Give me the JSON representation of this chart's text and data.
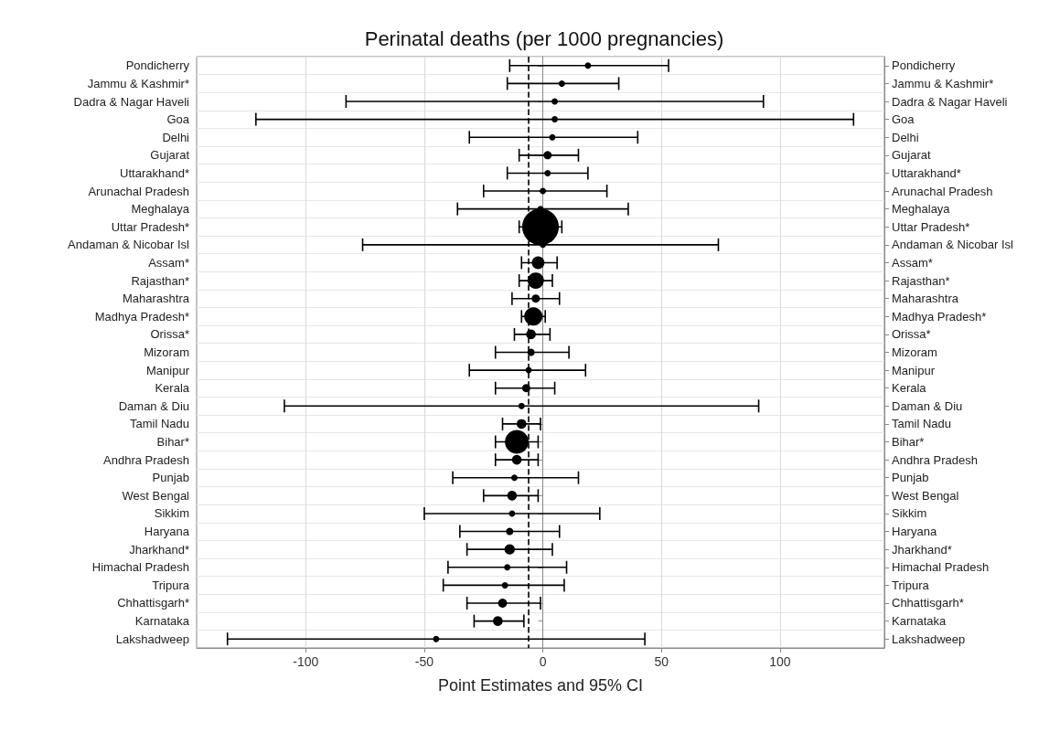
{
  "chart_data": {
    "type": "bubble",
    "orientation": "horizontal",
    "title": "Perinatal deaths (per 1000 pregnancies)",
    "xlabel": "Point Estimates and 95% CI",
    "categories": [
      "Pondicherry",
      "Jammu & Kashmir*",
      "Dadra & Nagar Haveli",
      "Goa",
      "Delhi",
      "Gujarat",
      "Uttarakhand*",
      "Arunachal Pradesh",
      "Meghalaya",
      "Uttar Pradesh*",
      "Andaman & Nicobar Isl",
      "Assam*",
      "Rajasthan*",
      "Maharashtra",
      "Madhya Pradesh*",
      "Orissa*",
      "Mizoram",
      "Manipur",
      "Kerala",
      "Daman & Diu",
      "Tamil Nadu",
      "Bihar*",
      "Andhra Pradesh",
      "Punjab",
      "West Bengal",
      "Sikkim",
      "Haryana",
      "Jharkhand*",
      "Himachal Pradesh",
      "Tripura",
      "Chhattisgarh*",
      "Karnataka",
      "Lakshadweep"
    ],
    "y2_categories": [
      "Pondicherry",
      "Jammu & Kashmir*",
      "Dadra & Nagar Haveli",
      "Goa",
      "Delhi",
      "Gujarat",
      "Uttarakhand*",
      "Arunachal Pradesh",
      "Meghalaya",
      "Uttar Pradesh*",
      "Andaman & Nicobar Isl",
      "Assam*",
      "Rajasthan*",
      "Maharashtra",
      "Madhya Pradesh*",
      "Orissa*",
      "Mizoram",
      "Manipur",
      "Kerala",
      "Daman & Diu",
      "Tamil Nadu",
      "Bihar*",
      "Andhra Pradesh",
      "Punjab",
      "West Bengal",
      "Sikkim",
      "Haryana",
      "Jharkhand*",
      "Himachal Pradesh",
      "Tripura",
      "Chhattisgarh*",
      "Karnataka",
      "Lakshadweep"
    ],
    "values": [
      19,
      8,
      5,
      5,
      4,
      2,
      2,
      0,
      -1,
      -1,
      0,
      -2,
      -3,
      -3,
      -4,
      -5,
      -5,
      -6,
      -7,
      -9,
      -9,
      -11,
      -11,
      -12,
      -13,
      -13,
      -14,
      -14,
      -15,
      -16,
      -17,
      -19,
      -45
    ],
    "errors": [
      [
        -14,
        53
      ],
      [
        -15,
        32
      ],
      [
        -83,
        93
      ],
      [
        -121,
        131
      ],
      [
        -31,
        40
      ],
      [
        -10,
        15
      ],
      [
        -15,
        19
      ],
      [
        -25,
        27
      ],
      [
        -36,
        36
      ],
      [
        -10,
        8
      ],
      [
        -76,
        74
      ],
      [
        -9,
        6
      ],
      [
        -10,
        4
      ],
      [
        -13,
        7
      ],
      [
        -9,
        1
      ],
      [
        -12,
        3
      ],
      [
        -20,
        11
      ],
      [
        -31,
        18
      ],
      [
        -20,
        5
      ],
      [
        -109,
        91
      ],
      [
        -17,
        -1
      ],
      [
        -20,
        -2
      ],
      [
        -20,
        -2
      ],
      [
        -38,
        15
      ],
      [
        -25,
        -2
      ],
      [
        -50,
        24
      ],
      [
        -35,
        7
      ],
      [
        -32,
        4
      ],
      [
        -40,
        10
      ],
      [
        -42,
        9
      ],
      [
        -32,
        -1
      ],
      [
        -29,
        -8
      ],
      [
        -133,
        43
      ]
    ],
    "sizes": [
      0.03,
      0.03,
      0.03,
      0.03,
      0.03,
      0.05,
      0.03,
      0.03,
      0.03,
      1,
      0.03,
      0.12,
      0.2,
      0.05,
      0.25,
      0.07,
      0.04,
      0.03,
      0.05,
      0.03,
      0.07,
      0.42,
      0.07,
      0.03,
      0.07,
      0.03,
      0.04,
      0.08,
      0.03,
      0.03,
      0.06,
      0.07,
      0.03
    ],
    "color": "#000000",
    "xlim": [
      -146,
      144
    ],
    "xticks": [
      -100,
      -50,
      0,
      50,
      100
    ],
    "grid": true,
    "ref_lines": [
      {
        "axis": "x",
        "value": -6,
        "line_style": "dashed",
        "color": "#000000"
      }
    ]
  }
}
